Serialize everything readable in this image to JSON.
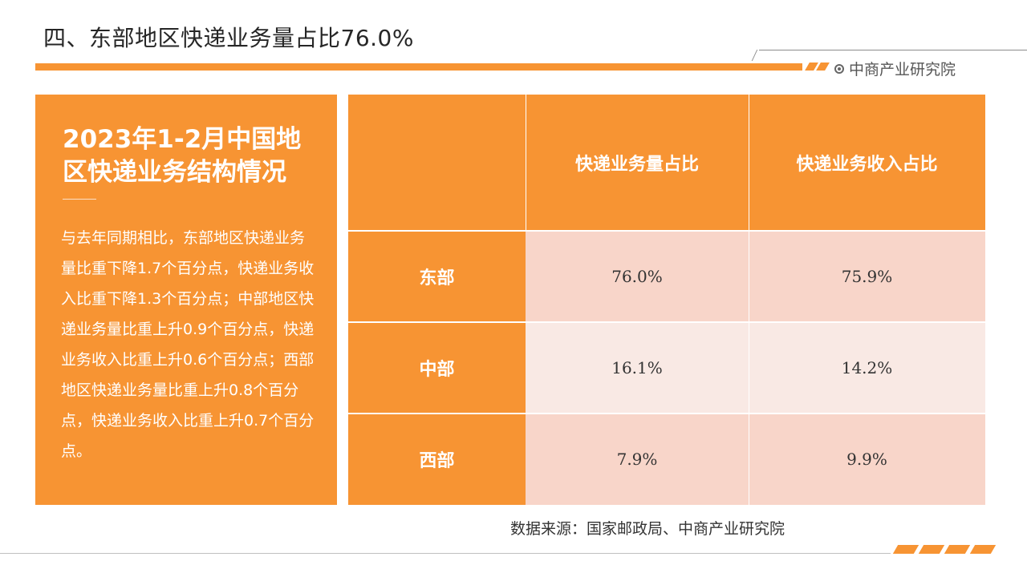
{
  "page": {
    "title": "四、东部地区快递业务量占比76.0%",
    "brand": "中商产业研究院"
  },
  "summary": {
    "heading": "2023年1-2月中国地区快递业务结构情况",
    "text": "与去年同期相比，东部地区快递业务量比重下降1.7个百分点，快递业务收入比重下降1.3个百分点；中部地区快递业务量比重上升0.9个百分点，快递业务收入比重上升0.6个百分点；西部地区快递业务量比重上升0.8个百分点，快递业务收入比重上升0.7个百分点。"
  },
  "table": {
    "headers": [
      "",
      "快递业务量占比",
      "快递业务收入占比"
    ],
    "rows": [
      {
        "region": "东部",
        "volume_share": "76.0%",
        "revenue_share": "75.9%"
      },
      {
        "region": "中部",
        "volume_share": "16.1%",
        "revenue_share": "14.2%"
      },
      {
        "region": "西部",
        "volume_share": "7.9%",
        "revenue_share": "9.9%"
      }
    ]
  },
  "source": "数据来源：国家邮政局、中商产业研究院",
  "colors": {
    "accent": "#f79433",
    "row_dark": "#f8d5c9",
    "row_light": "#f9e9e4"
  },
  "icons": {
    "brand": "circle-dot-icon"
  }
}
